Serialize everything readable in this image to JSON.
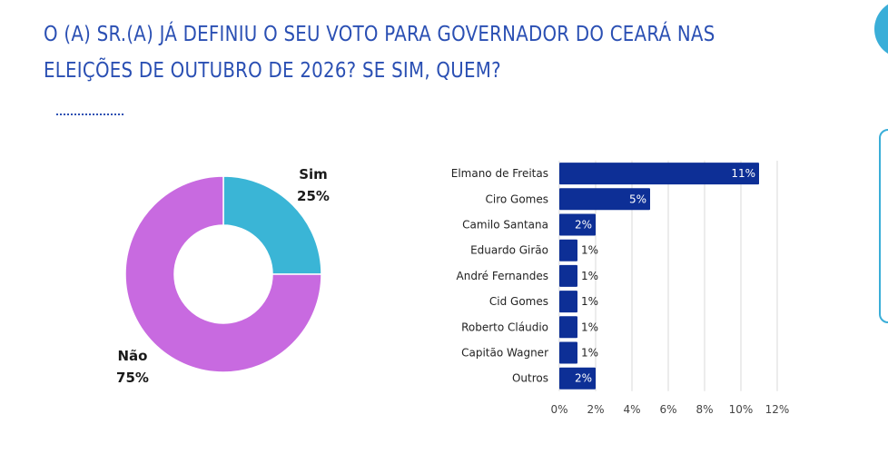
{
  "title": {
    "line1": "O (A) SR.(A) JÁ DEFINIU O SEU VOTO PARA GOVERNADOR DO CEARÁ NAS",
    "line2": "ELEIÇÕES DE OUTUBRO DE 2026? SE SIM, QUEM?"
  },
  "colors": {
    "title": "#2a4fb3",
    "sim": "#3ab5d6",
    "nao": "#c86ae0",
    "bar": "#0d2f96",
    "accent": "#3aaed8"
  },
  "chart_data": [
    {
      "type": "pie",
      "donut": true,
      "slices": [
        {
          "name": "Sim",
          "label": "25%",
          "value": 25
        },
        {
          "name": "Não",
          "label": "75%",
          "value": 75
        }
      ]
    },
    {
      "type": "bar",
      "orientation": "horizontal",
      "categories": [
        "Elmano de Freitas",
        "Ciro Gomes",
        "Camilo Santana",
        "Eduardo Girão",
        "André Fernandes",
        "Cid Gomes",
        "Roberto Cláudio",
        "Capitão Wagner",
        "Outros"
      ],
      "values": [
        11,
        5,
        2,
        1,
        1,
        1,
        1,
        1,
        2
      ],
      "value_labels": [
        "11%",
        "5%",
        "2%",
        "1%",
        "1%",
        "1%",
        "1%",
        "1%",
        "2%"
      ],
      "xlim": [
        0,
        12
      ],
      "xticks": [
        "0%",
        "2%",
        "4%",
        "6%",
        "8%",
        "10%",
        "12%"
      ],
      "grid": true
    }
  ]
}
